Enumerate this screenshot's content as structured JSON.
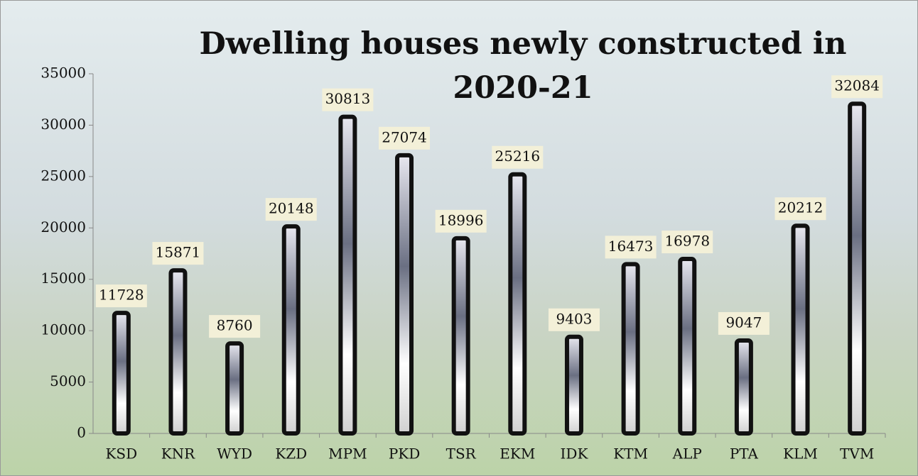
{
  "chart_data": {
    "type": "bar",
    "title": "Dwelling houses newly constructed in 2020-21",
    "categories": [
      "KSD",
      "KNR",
      "WYD",
      "KZD",
      "MPM",
      "PKD",
      "TSR",
      "EKM",
      "IDK",
      "KTM",
      "ALP",
      "PTA",
      "KLM",
      "TVM"
    ],
    "values": [
      11728,
      15871,
      8760,
      20148,
      30813,
      27074,
      18996,
      25216,
      9403,
      16473,
      16978,
      9047,
      20212,
      32084
    ],
    "color": "#111111",
    "ylim": [
      0,
      35000
    ],
    "yticks": [
      0,
      5000,
      10000,
      15000,
      20000,
      25000,
      30000,
      35000
    ],
    "grid": false
  }
}
